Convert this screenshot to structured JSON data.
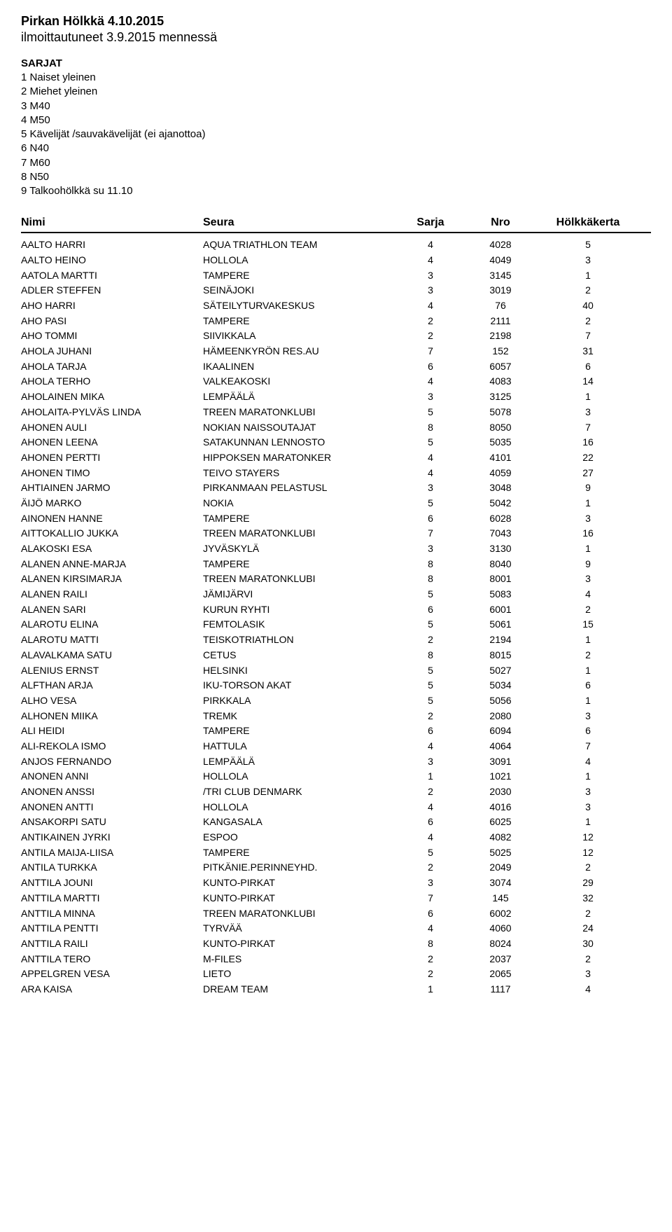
{
  "title": "Pirkan Hölkkä 4.10.2015",
  "subtitle": "ilmoittautuneet 3.9.2015 mennessä",
  "categories_heading": "SARJAT",
  "categories": [
    "1 Naiset yleinen",
    "2 Miehet yleinen",
    "3 M40",
    "4 M50",
    "5 Kävelijät /sauvakävelijät (ei ajanottoa)",
    "6 N40",
    "7 M60",
    "8 N50",
    "9 Talkoohölkkä su 11.10"
  ],
  "headers": {
    "name": "Nimi",
    "club": "Seura",
    "series": "Sarja",
    "bib": "Nro",
    "count": "Hölkkäkerta"
  },
  "rows": [
    {
      "name": "AALTO HARRI",
      "club": "AQUA TRIATHLON TEAM",
      "s": "4",
      "b": "4028",
      "c": "5"
    },
    {
      "name": "AALTO HEINO",
      "club": "HOLLOLA",
      "s": "4",
      "b": "4049",
      "c": "3"
    },
    {
      "name": "AATOLA MARTTI",
      "club": "TAMPERE",
      "s": "3",
      "b": "3145",
      "c": "1"
    },
    {
      "name": "ADLER STEFFEN",
      "club": "SEINÄJOKI",
      "s": "3",
      "b": "3019",
      "c": "2"
    },
    {
      "name": "AHO HARRI",
      "club": "SÄTEILYTURVAKESKUS",
      "s": "4",
      "b": "76",
      "c": "40"
    },
    {
      "name": "AHO PASI",
      "club": "TAMPERE",
      "s": "2",
      "b": "2111",
      "c": "2"
    },
    {
      "name": "AHO TOMMI",
      "club": "SIIVIKKALA",
      "s": "2",
      "b": "2198",
      "c": "7"
    },
    {
      "name": "AHOLA JUHANI",
      "club": "HÄMEENKYRÖN RES.AU",
      "s": "7",
      "b": "152",
      "c": "31"
    },
    {
      "name": "AHOLA TARJA",
      "club": "IKAALINEN",
      "s": "6",
      "b": "6057",
      "c": "6"
    },
    {
      "name": "AHOLA TERHO",
      "club": "VALKEAKOSKI",
      "s": "4",
      "b": "4083",
      "c": "14"
    },
    {
      "name": "AHOLAINEN MIKA",
      "club": "LEMPÄÄLÄ",
      "s": "3",
      "b": "3125",
      "c": "1"
    },
    {
      "name": "AHOLAITA-PYLVÄS LINDA",
      "club": "TREEN MARATONKLUBI",
      "s": "5",
      "b": "5078",
      "c": "3"
    },
    {
      "name": "AHONEN AULI",
      "club": "NOKIAN NAISSOUTAJAT",
      "s": "8",
      "b": "8050",
      "c": "7"
    },
    {
      "name": "AHONEN LEENA",
      "club": "SATAKUNNAN LENNOSTO",
      "s": "5",
      "b": "5035",
      "c": "16"
    },
    {
      "name": "AHONEN PERTTI",
      "club": "HIPPOKSEN MARATONKER",
      "s": "4",
      "b": "4101",
      "c": "22"
    },
    {
      "name": "AHONEN TIMO",
      "club": "TEIVO STAYERS",
      "s": "4",
      "b": "4059",
      "c": "27"
    },
    {
      "name": "AHTIAINEN JARMO",
      "club": "PIRKANMAAN PELASTUSL",
      "s": "3",
      "b": "3048",
      "c": "9"
    },
    {
      "name": "ÄIJÖ MARKO",
      "club": "NOKIA",
      "s": "5",
      "b": "5042",
      "c": "1"
    },
    {
      "name": "AINONEN HANNE",
      "club": "TAMPERE",
      "s": "6",
      "b": "6028",
      "c": "3"
    },
    {
      "name": "AITTOKALLIO JUKKA",
      "club": "TREEN MARATONKLUBI",
      "s": "7",
      "b": "7043",
      "c": "16"
    },
    {
      "name": "ALAKOSKI ESA",
      "club": "JYVÄSKYLÄ",
      "s": "3",
      "b": "3130",
      "c": "1"
    },
    {
      "name": "ALANEN ANNE-MARJA",
      "club": "TAMPERE",
      "s": "8",
      "b": "8040",
      "c": "9"
    },
    {
      "name": "ALANEN KIRSIMARJA",
      "club": "TREEN MARATONKLUBI",
      "s": "8",
      "b": "8001",
      "c": "3"
    },
    {
      "name": "ALANEN RAILI",
      "club": "JÄMIJÄRVI",
      "s": "5",
      "b": "5083",
      "c": "4"
    },
    {
      "name": "ALANEN SARI",
      "club": "KURUN RYHTI",
      "s": "6",
      "b": "6001",
      "c": "2"
    },
    {
      "name": "ALAROTU ELINA",
      "club": "FEMTOLASIK",
      "s": "5",
      "b": "5061",
      "c": "15"
    },
    {
      "name": "ALAROTU MATTI",
      "club": "TEISKOTRIATHLON",
      "s": "2",
      "b": "2194",
      "c": "1"
    },
    {
      "name": "ALAVALKAMA SATU",
      "club": "CETUS",
      "s": "8",
      "b": "8015",
      "c": "2"
    },
    {
      "name": "ALENIUS ERNST",
      "club": "HELSINKI",
      "s": "5",
      "b": "5027",
      "c": "1"
    },
    {
      "name": "ALFTHAN ARJA",
      "club": "IKU-TORSON AKAT",
      "s": "5",
      "b": "5034",
      "c": "6"
    },
    {
      "name": "ALHO VESA",
      "club": "PIRKKALA",
      "s": "5",
      "b": "5056",
      "c": "1"
    },
    {
      "name": "ALHONEN MIIKA",
      "club": "TREMK",
      "s": "2",
      "b": "2080",
      "c": "3"
    },
    {
      "name": "ALI HEIDI",
      "club": "TAMPERE",
      "s": "6",
      "b": "6094",
      "c": "6"
    },
    {
      "name": "ALI-REKOLA ISMO",
      "club": "HATTULA",
      "s": "4",
      "b": "4064",
      "c": "7"
    },
    {
      "name": "ANJOS FERNANDO",
      "club": "LEMPÄÄLÄ",
      "s": "3",
      "b": "3091",
      "c": "4"
    },
    {
      "name": "ANONEN ANNI",
      "club": "HOLLOLA",
      "s": "1",
      "b": "1021",
      "c": "1"
    },
    {
      "name": "ANONEN ANSSI",
      "club": "/TRI CLUB DENMARK",
      "s": "2",
      "b": "2030",
      "c": "3"
    },
    {
      "name": "ANONEN ANTTI",
      "club": "HOLLOLA",
      "s": "4",
      "b": "4016",
      "c": "3"
    },
    {
      "name": "ANSAKORPI SATU",
      "club": "KANGASALA",
      "s": "6",
      "b": "6025",
      "c": "1"
    },
    {
      "name": "ANTIKAINEN JYRKI",
      "club": "ESPOO",
      "s": "4",
      "b": "4082",
      "c": "12"
    },
    {
      "name": "ANTILA MAIJA-LIISA",
      "club": "TAMPERE",
      "s": "5",
      "b": "5025",
      "c": "12"
    },
    {
      "name": "ANTILA TURKKA",
      "club": "PITKÄNIE.PERINNEYHD.",
      "s": "2",
      "b": "2049",
      "c": "2"
    },
    {
      "name": "ANTTILA JOUNI",
      "club": "KUNTO-PIRKAT",
      "s": "3",
      "b": "3074",
      "c": "29"
    },
    {
      "name": "ANTTILA MARTTI",
      "club": "KUNTO-PIRKAT",
      "s": "7",
      "b": "145",
      "c": "32"
    },
    {
      "name": "ANTTILA MINNA",
      "club": "TREEN MARATONKLUBI",
      "s": "6",
      "b": "6002",
      "c": "2"
    },
    {
      "name": "ANTTILA PENTTI",
      "club": "TYRVÄÄ",
      "s": "4",
      "b": "4060",
      "c": "24"
    },
    {
      "name": "ANTTILA RAILI",
      "club": "KUNTO-PIRKAT",
      "s": "8",
      "b": "8024",
      "c": "30"
    },
    {
      "name": "ANTTILA TERO",
      "club": "M-FILES",
      "s": "2",
      "b": "2037",
      "c": "2"
    },
    {
      "name": "APPELGREN VESA",
      "club": "LIETO",
      "s": "2",
      "b": "2065",
      "c": "3"
    },
    {
      "name": "ARA KAISA",
      "club": "DREAM TEAM",
      "s": "1",
      "b": "1117",
      "c": "4"
    }
  ]
}
